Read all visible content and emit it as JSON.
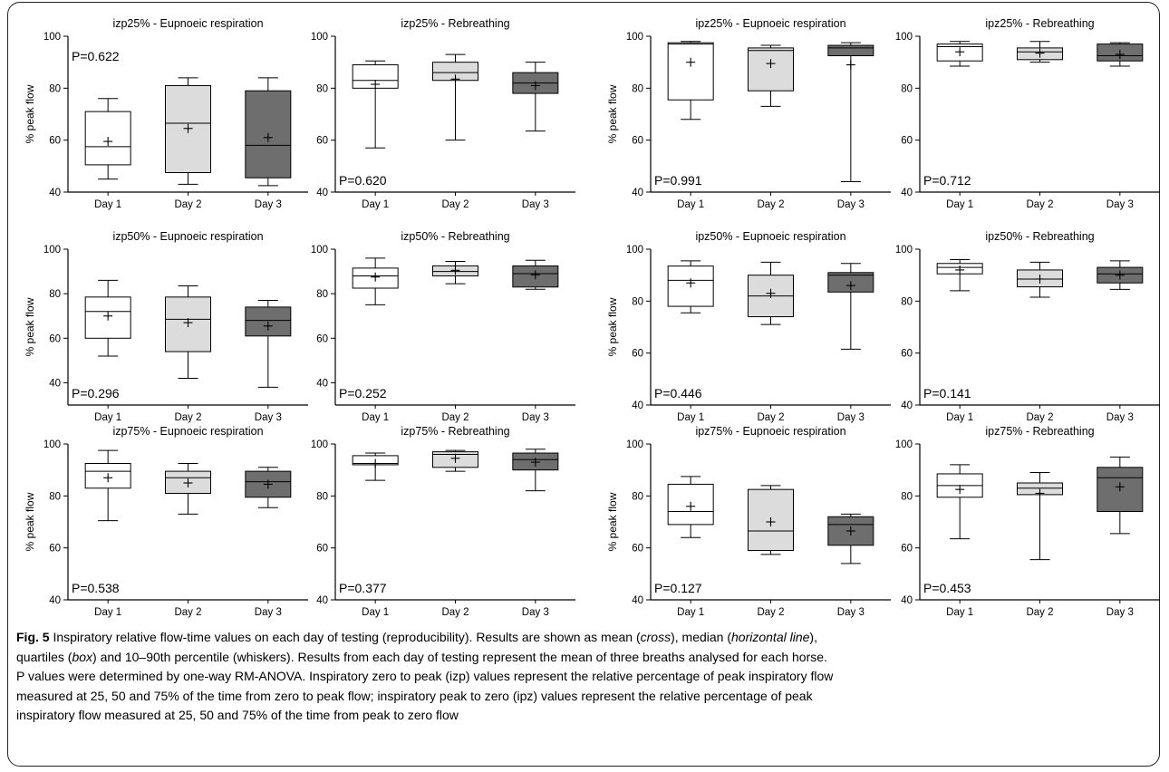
{
  "figure": {
    "caption": {
      "label": "Fig. 5",
      "line1_start": " Inspiratory relative flow-time values on each day of testing (reproducibility). Results are shown as mean (",
      "line1_cross": "cross",
      "line1_mid": "), median (",
      "line1_hline": "horizontal line",
      "line1_end": "),",
      "line2_start": "quartiles (",
      "line2_box": "box",
      "line2_end": ") and 10–90th percentile (whiskers). Results from each day of testing represent the mean of three breaths analysed for each horse.",
      "line3": "P values were determined by one-way RM-ANOVA. Inspiratory zero to peak (izp) values represent the relative percentage of peak inspiratory flow",
      "line4": "measured at 25, 50 and 75% of the time from zero to peak flow; inspiratory peak to zero (ipz) values represent the relative percentage of peak",
      "line5": "inspiratory flow measured at 25, 50 and 75% of the time from peak to zero flow"
    },
    "colors": {
      "day1": "#ffffff",
      "day2": "#dcdcdc",
      "day3": "#6e6e6e",
      "stroke": "#000000"
    }
  },
  "chart_data": [
    {
      "type": "box",
      "title": "izp25% - Eupnoeic respiration",
      "ylabel": "% peak flow",
      "ylim": [
        40,
        100
      ],
      "yticks": [
        40,
        60,
        80,
        100
      ],
      "p_value": "P=0.622",
      "categories": [
        "Day 1",
        "Day 2",
        "Day 3"
      ],
      "boxes": [
        {
          "low": 45,
          "q1": 50.5,
          "median": 57.5,
          "q3": 71,
          "high": 76,
          "mean": 59.5
        },
        {
          "low": 43,
          "q1": 47.5,
          "median": 66.5,
          "q3": 81,
          "high": 84,
          "mean": 64.5
        },
        {
          "low": 42.5,
          "q1": 45.5,
          "median": 58,
          "q3": 79,
          "high": 84,
          "mean": 61
        }
      ]
    },
    {
      "type": "box",
      "title": "izp25% - Rebreathing",
      "ylabel": "",
      "ylim": [
        40,
        100
      ],
      "yticks": [
        40,
        60,
        80,
        100
      ],
      "p_value": "P=0.620",
      "categories": [
        "Day 1",
        "Day 2",
        "Day 3"
      ],
      "boxes": [
        {
          "low": 57,
          "q1": 80,
          "median": 83,
          "q3": 89,
          "high": 90.5,
          "mean": 81.5
        },
        {
          "low": 60,
          "q1": 83,
          "median": 86,
          "q3": 90,
          "high": 93,
          "mean": 83.5
        },
        {
          "low": 63.5,
          "q1": 78,
          "median": 82,
          "q3": 86,
          "high": 90,
          "mean": 81
        }
      ]
    },
    {
      "type": "box",
      "title": "ipz25% - Eupnoeic respiration",
      "ylabel": "% peak flow",
      "ylim": [
        40,
        100
      ],
      "yticks": [
        40,
        60,
        80,
        100
      ],
      "p_value": "P=0.991",
      "categories": [
        "Day 1",
        "Day 2",
        "Day 3"
      ],
      "boxes": [
        {
          "low": 68,
          "q1": 75.5,
          "median": 97,
          "q3": 97.5,
          "high": 98,
          "mean": 90
        },
        {
          "low": 73,
          "q1": 79,
          "median": 94.5,
          "q3": 95.5,
          "high": 96.5,
          "mean": 89.5
        },
        {
          "low": 44,
          "q1": 92.5,
          "median": 95.5,
          "q3": 96.5,
          "high": 97.5,
          "mean": 89
        }
      ]
    },
    {
      "type": "box",
      "title": "ipz25% - Rebreathing",
      "ylabel": "",
      "ylim": [
        40,
        100
      ],
      "yticks": [
        40,
        60,
        80,
        100
      ],
      "p_value": "P=0.712",
      "categories": [
        "Day 1",
        "Day 2",
        "Day 3"
      ],
      "boxes": [
        {
          "low": 88.5,
          "q1": 90.5,
          "median": 96,
          "q3": 97,
          "high": 98,
          "mean": 94
        },
        {
          "low": 90,
          "q1": 91,
          "median": 94,
          "q3": 95.5,
          "high": 98,
          "mean": 93.5
        },
        {
          "low": 88.5,
          "q1": 90.5,
          "median": 92.5,
          "q3": 97,
          "high": 97.5,
          "mean": 93
        }
      ]
    },
    {
      "type": "box",
      "title": "izp50% - Eupnoeic respiration",
      "ylabel": "% peak flow",
      "ylim": [
        30,
        100
      ],
      "yticks": [
        40,
        60,
        80,
        100
      ],
      "p_value": "P=0.296",
      "categories": [
        "Day 1",
        "Day 2",
        "Day 3"
      ],
      "boxes": [
        {
          "low": 52,
          "q1": 60,
          "median": 72,
          "q3": 78.5,
          "high": 86,
          "mean": 70
        },
        {
          "low": 42,
          "q1": 54,
          "median": 68.5,
          "q3": 78.5,
          "high": 83.5,
          "mean": 67
        },
        {
          "low": 38,
          "q1": 61,
          "median": 68,
          "q3": 74,
          "high": 77,
          "mean": 65.5
        }
      ]
    },
    {
      "type": "box",
      "title": "izp50% - Rebreathing",
      "ylabel": "",
      "ylim": [
        30,
        100
      ],
      "yticks": [
        40,
        60,
        80,
        100
      ],
      "p_value": "P=0.252",
      "categories": [
        "Day 1",
        "Day 2",
        "Day 3"
      ],
      "boxes": [
        {
          "low": 75,
          "q1": 82.5,
          "median": 88,
          "q3": 91.5,
          "high": 96,
          "mean": 87.5
        },
        {
          "low": 84.5,
          "q1": 88,
          "median": 90,
          "q3": 92.5,
          "high": 94.5,
          "mean": 90.5
        },
        {
          "low": 82,
          "q1": 83,
          "median": 89,
          "q3": 92.5,
          "high": 95,
          "mean": 88.5
        }
      ]
    },
    {
      "type": "box",
      "title": "ipz50% - Eupnoeic respiration",
      "ylabel": "% peak flow",
      "ylim": [
        40,
        100
      ],
      "yticks": [
        40,
        60,
        80,
        100
      ],
      "p_value": "P=0.446",
      "categories": [
        "Day 1",
        "Day 2",
        "Day 3"
      ],
      "boxes": [
        {
          "low": 75.5,
          "q1": 78,
          "median": 88,
          "q3": 93.5,
          "high": 95.5,
          "mean": 87
        },
        {
          "low": 71,
          "q1": 74,
          "median": 82,
          "q3": 90,
          "high": 95,
          "mean": 83
        },
        {
          "low": 61.5,
          "q1": 83.5,
          "median": 90,
          "q3": 91,
          "high": 94.5,
          "mean": 86
        }
      ]
    },
    {
      "type": "box",
      "title": "ipz50% - Rebreathing",
      "ylabel": "",
      "ylim": [
        40,
        100
      ],
      "yticks": [
        40,
        60,
        80,
        100
      ],
      "p_value": "P=0.141",
      "categories": [
        "Day 1",
        "Day 2",
        "Day 3"
      ],
      "boxes": [
        {
          "low": 84,
          "q1": 90.5,
          "median": 93,
          "q3": 94.5,
          "high": 96,
          "mean": 92
        },
        {
          "low": 81.5,
          "q1": 85.5,
          "median": 88.5,
          "q3": 92,
          "high": 95,
          "mean": 88.5
        },
        {
          "low": 84.5,
          "q1": 87,
          "median": 90.5,
          "q3": 93,
          "high": 95.5,
          "mean": 90
        }
      ]
    },
    {
      "type": "box",
      "title": "izp75% - Eupnoeic respiration",
      "ylabel": "% peak flow",
      "ylim": [
        40,
        100
      ],
      "yticks": [
        40,
        60,
        80,
        100
      ],
      "p_value": "P=0.538",
      "categories": [
        "Day 1",
        "Day 2",
        "Day 3"
      ],
      "boxes": [
        {
          "low": 70.5,
          "q1": 83,
          "median": 89.5,
          "q3": 92.5,
          "high": 97.5,
          "mean": 87
        },
        {
          "low": 73,
          "q1": 81,
          "median": 87,
          "q3": 89.5,
          "high": 92.5,
          "mean": 85
        },
        {
          "low": 75.5,
          "q1": 79.5,
          "median": 85.5,
          "q3": 89.5,
          "high": 91,
          "mean": 84.5
        }
      ]
    },
    {
      "type": "box",
      "title": "izp75% - Rebreathing",
      "ylabel": "",
      "ylim": [
        40,
        100
      ],
      "yticks": [
        40,
        60,
        80,
        100
      ],
      "p_value": "P=0.377",
      "categories": [
        "Day 1",
        "Day 2",
        "Day 3"
      ],
      "boxes": [
        {
          "low": 86,
          "q1": 92,
          "median": 92.5,
          "q3": 95.5,
          "high": 96.5,
          "mean": 92.5
        },
        {
          "low": 89.5,
          "q1": 91,
          "median": 96,
          "q3": 97,
          "high": 97.5,
          "mean": 94.5
        },
        {
          "low": 82,
          "q1": 90,
          "median": 94,
          "q3": 96.5,
          "high": 98,
          "mean": 93
        }
      ]
    },
    {
      "type": "box",
      "title": "ipz75% - Eupnoeic respiration",
      "ylabel": "% peak flow",
      "ylim": [
        40,
        100
      ],
      "yticks": [
        40,
        60,
        80,
        100
      ],
      "p_value": "P=0.127",
      "categories": [
        "Day 1",
        "Day 2",
        "Day 3"
      ],
      "boxes": [
        {
          "low": 64,
          "q1": 69,
          "median": 74,
          "q3": 84.5,
          "high": 87.5,
          "mean": 76
        },
        {
          "low": 57.5,
          "q1": 59,
          "median": 66.5,
          "q3": 82.5,
          "high": 84,
          "mean": 70
        },
        {
          "low": 54,
          "q1": 61,
          "median": 69,
          "q3": 72,
          "high": 73,
          "mean": 66.5
        }
      ]
    },
    {
      "type": "box",
      "title": "ipz75% - Rebreathing",
      "ylabel": "",
      "ylim": [
        40,
        100
      ],
      "yticks": [
        40,
        60,
        80,
        100
      ],
      "p_value": "P=0.453",
      "categories": [
        "Day 1",
        "Day 2",
        "Day 3"
      ],
      "boxes": [
        {
          "low": 63.5,
          "q1": 79.5,
          "median": 84,
          "q3": 88.5,
          "high": 92,
          "mean": 82.5
        },
        {
          "low": 55.5,
          "q1": 80.5,
          "median": 83,
          "q3": 85,
          "high": 89,
          "mean": 81
        },
        {
          "low": 65.5,
          "q1": 74,
          "median": 87,
          "q3": 91,
          "high": 95,
          "mean": 83.5
        }
      ]
    }
  ]
}
